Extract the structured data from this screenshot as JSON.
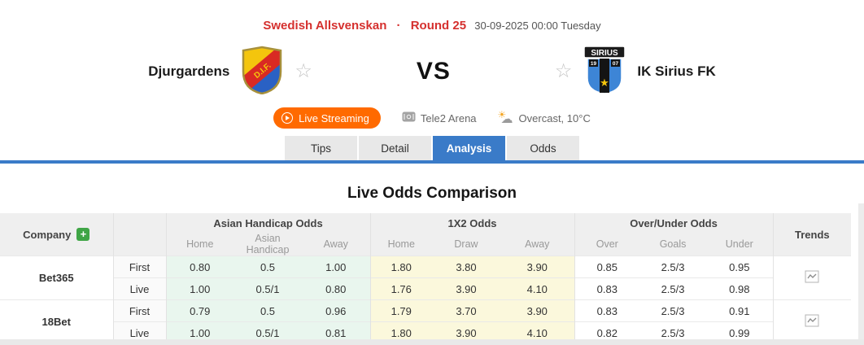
{
  "page": {
    "league": "Swedish Allsvenskan",
    "separator": "·",
    "round": "Round 25",
    "datetime": "30-09-2025 00:00 Tuesday"
  },
  "match": {
    "home": {
      "name": "Djurgardens",
      "logo_text": "D.I.F."
    },
    "away": {
      "name": "IK Sirius FK",
      "logo_banner": "SIRIUS",
      "logo_year_left": "19",
      "logo_year_right": "07"
    },
    "vs": "VS",
    "live_streaming_label": "Live Streaming",
    "venue": "Tele2 Arena",
    "weather": "Overcast, 10°C",
    "favorite_star": "☆"
  },
  "tabs": {
    "items": [
      {
        "label": "Tips",
        "active": false
      },
      {
        "label": "Detail",
        "active": false
      },
      {
        "label": "Analysis",
        "active": true
      },
      {
        "label": "Odds",
        "active": false
      }
    ]
  },
  "section": {
    "title": "Live Odds Comparison"
  },
  "odds_table": {
    "company_label": "Company",
    "add_label": "+",
    "groups": {
      "ah": "Asian Handicap Odds",
      "x12": "1X2 Odds",
      "ou": "Over/Under Odds",
      "trends": "Trends"
    },
    "subheaders": {
      "ah": [
        "Home",
        "Asian Handicap",
        "Away"
      ],
      "x12": [
        "Home",
        "Draw",
        "Away"
      ],
      "ou": [
        "Over",
        "Goals",
        "Under"
      ]
    },
    "companies": [
      {
        "name": "Bet365",
        "rows": [
          {
            "type": "First",
            "ah": [
              "0.80",
              "0.5",
              "1.00"
            ],
            "x12": [
              "1.80",
              "3.80",
              "3.90"
            ],
            "ou": [
              "0.85",
              "2.5/3",
              "0.95"
            ]
          },
          {
            "type": "Live",
            "ah": [
              "1.00",
              "0.5/1",
              "0.80"
            ],
            "x12": [
              "1.76",
              "3.90",
              "4.10"
            ],
            "ou": [
              "0.83",
              "2.5/3",
              "0.98"
            ]
          }
        ]
      },
      {
        "name": "18Bet",
        "rows": [
          {
            "type": "First",
            "ah": [
              "0.79",
              "0.5",
              "0.96"
            ],
            "x12": [
              "1.79",
              "3.70",
              "3.90"
            ],
            "ou": [
              "0.83",
              "2.5/3",
              "0.91"
            ]
          },
          {
            "type": "Live",
            "ah": [
              "1.00",
              "0.5/1",
              "0.81"
            ],
            "x12": [
              "1.80",
              "3.90",
              "4.10"
            ],
            "ou": [
              "0.82",
              "2.5/3",
              "0.99"
            ]
          }
        ]
      }
    ]
  },
  "colors": {
    "accent_red": "#d5302e",
    "accent_orange": "#ff6a00",
    "accent_blue": "#3a7bc8",
    "accent_green": "#3fa546",
    "ah_cell_bg": "#e9f6ee",
    "x12_cell_bg": "#fbf8dc",
    "header_bg": "#efefef"
  }
}
